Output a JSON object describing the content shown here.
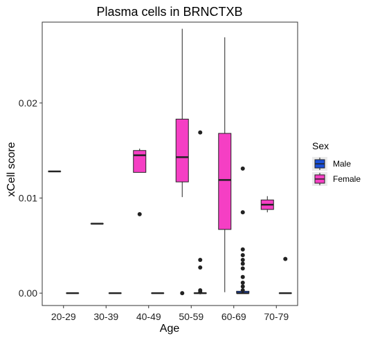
{
  "chart_data": {
    "type": "box",
    "title": "Plasma cells in BRNCTXB",
    "xlabel": "Age",
    "ylabel": "xCell score",
    "categories": [
      "20-29",
      "30-39",
      "40-49",
      "50-59",
      "60-69",
      "70-79"
    ],
    "ylim": [
      -0.0013,
      0.0285
    ],
    "yticks": [
      0.0,
      0.01,
      0.02
    ],
    "ytick_labels": [
      "0.00",
      "0.01",
      "0.02"
    ],
    "grid": false,
    "legend": {
      "title": "Sex",
      "position": "right",
      "entries": [
        {
          "label": "Male",
          "color": "#1a4fd6"
        },
        {
          "label": "Female",
          "color": "#f53fc4"
        }
      ]
    },
    "series": [
      {
        "name": "Male",
        "color": "#1a4fd6",
        "boxes": [
          {
            "category": "20-29",
            "min": 0.0,
            "q1": 0.0,
            "median": 0.0,
            "q3": 0.0,
            "max": 0.0,
            "outliers": []
          },
          {
            "category": "30-39",
            "min": 0.0,
            "q1": 0.0,
            "median": 0.0,
            "q3": 0.0,
            "max": 0.0,
            "outliers": []
          },
          {
            "category": "40-49",
            "min": 0.0,
            "q1": 0.0,
            "median": 0.0,
            "q3": 0.0,
            "max": 0.0,
            "outliers": []
          },
          {
            "category": "50-59",
            "min": 0.0,
            "q1": 0.0,
            "median": 0.0,
            "q3": 0.0,
            "max": 0.0,
            "outliers": [
              0.0169,
              0.0035,
              0.0027,
              0.0003,
              0.0001
            ]
          },
          {
            "category": "60-69",
            "min": 0.0,
            "q1": 0.0,
            "median": 0.0,
            "q3": 0.0002,
            "max": 0.0002,
            "outliers": [
              0.0131,
              0.0085,
              0.0046,
              0.004,
              0.0035,
              0.0031,
              0.0026,
              0.0017,
              0.0011,
              0.0007,
              0.0003
            ]
          },
          {
            "category": "70-79",
            "min": 0.0,
            "q1": 0.0,
            "median": 0.0,
            "q3": 0.0,
            "max": 0.0,
            "outliers": [
              0.0036
            ]
          }
        ]
      },
      {
        "name": "Female",
        "color": "#f53fc4",
        "boxes": [
          {
            "category": "20-29",
            "min": 0.0128,
            "q1": 0.0128,
            "median": 0.0128,
            "q3": 0.0128,
            "max": 0.0128,
            "outliers": []
          },
          {
            "category": "30-39",
            "min": 0.0073,
            "q1": 0.0073,
            "median": 0.0073,
            "q3": 0.0073,
            "max": 0.0073,
            "outliers": []
          },
          {
            "category": "40-49",
            "min": 0.0127,
            "q1": 0.0127,
            "median": 0.0145,
            "q3": 0.015,
            "max": 0.0152,
            "outliers": [
              0.0083
            ]
          },
          {
            "category": "50-59",
            "min": 0.0101,
            "q1": 0.0117,
            "median": 0.0143,
            "q3": 0.0183,
            "max": 0.0278,
            "outliers": [
              0.0
            ]
          },
          {
            "category": "60-69",
            "min": 0.0001,
            "q1": 0.0067,
            "median": 0.0119,
            "q3": 0.0168,
            "max": 0.0269,
            "outliers": []
          },
          {
            "category": "70-79",
            "min": 0.0085,
            "q1": 0.0088,
            "median": 0.0093,
            "q3": 0.0098,
            "max": 0.0102,
            "outliers": []
          }
        ]
      }
    ]
  }
}
